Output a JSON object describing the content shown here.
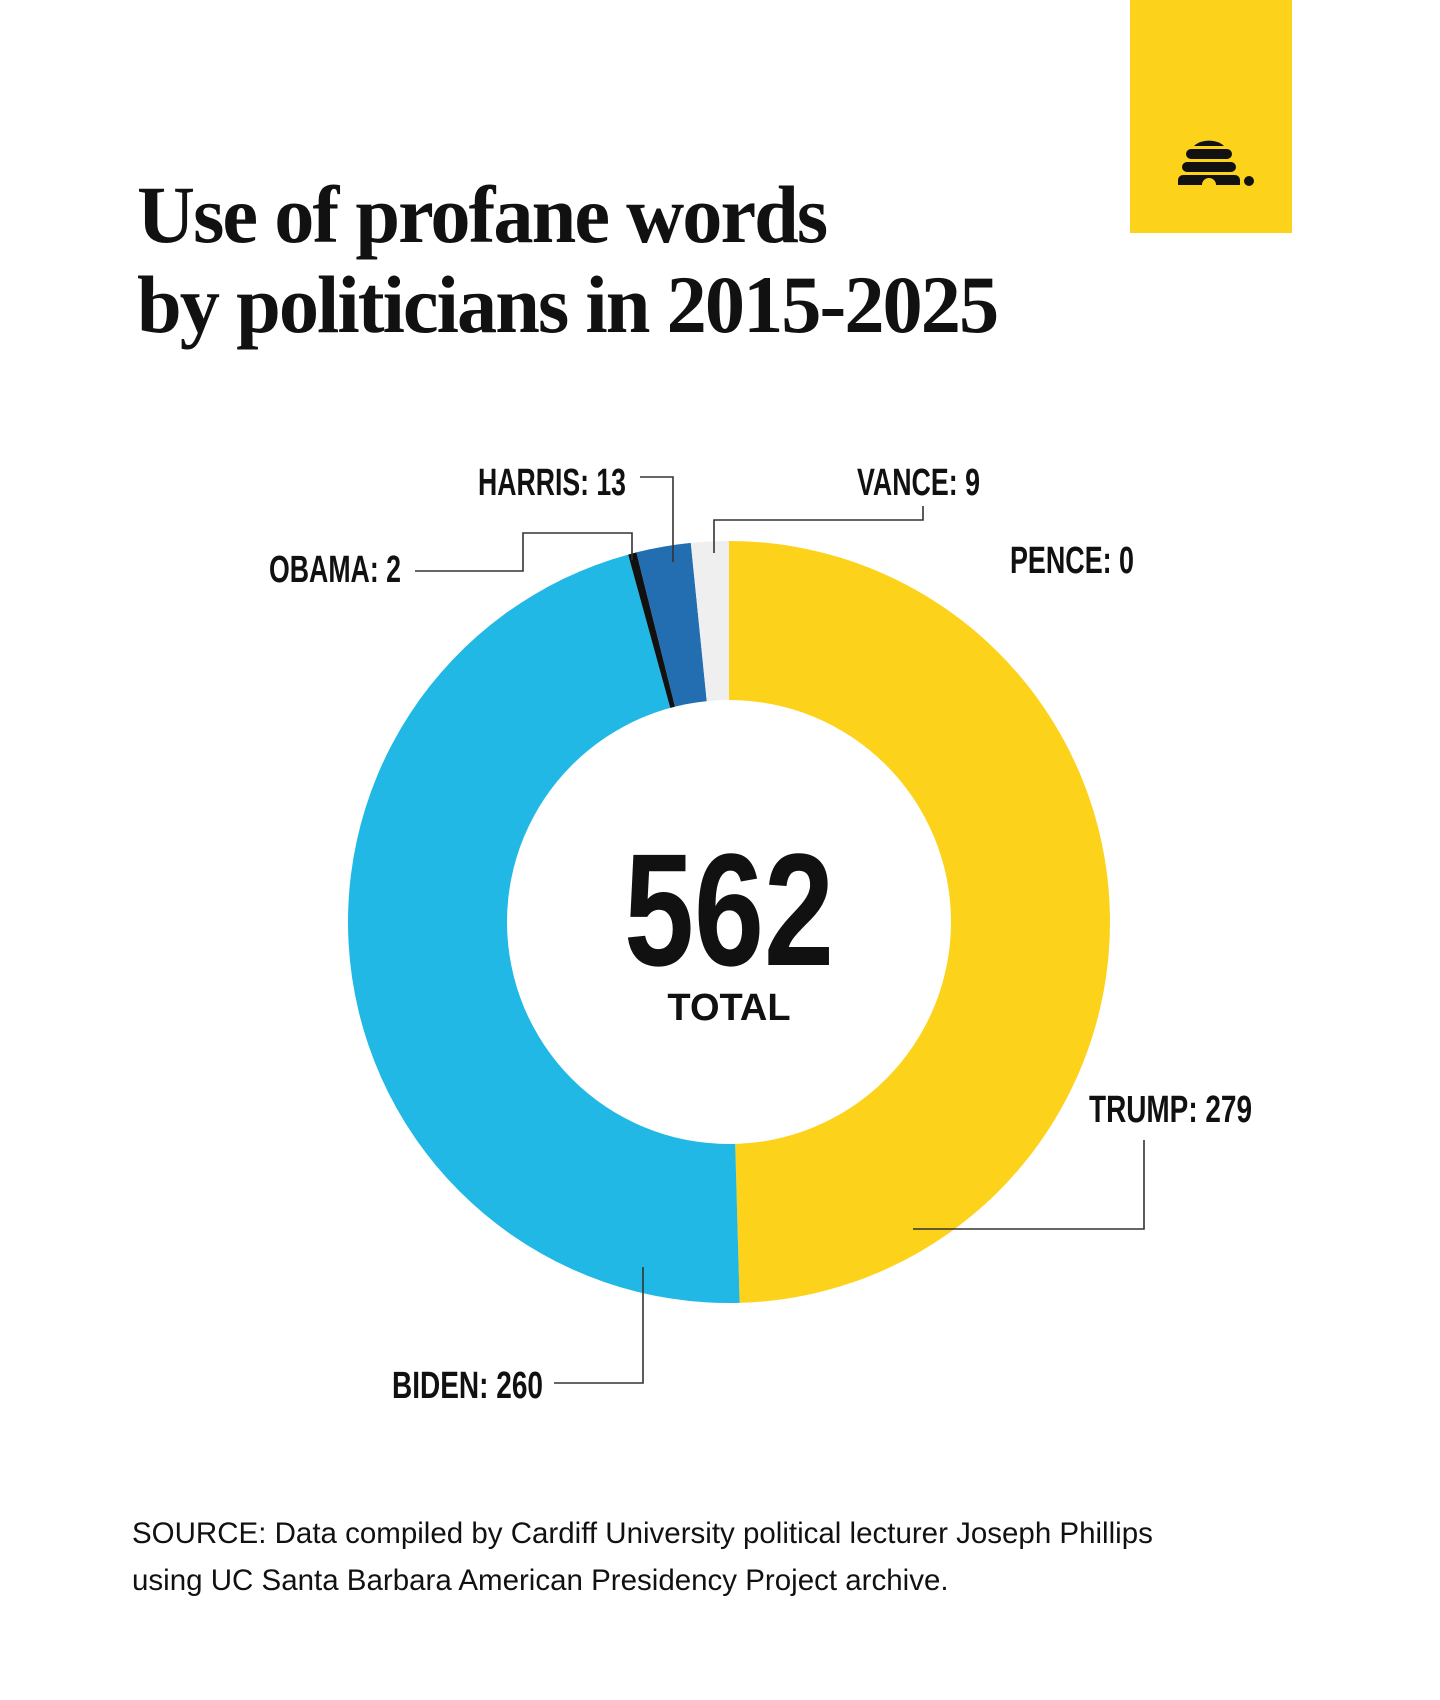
{
  "brand": {
    "logo_icon": "beehive-icon",
    "box_color": "#FDD21A"
  },
  "title": {
    "line1": "Use of profane words",
    "line2": "by politicians in 2015-2025"
  },
  "center": {
    "value": "562",
    "label": "TOTAL"
  },
  "labels": {
    "trump": "TRUMP: 279",
    "biden": "BIDEN: 260",
    "obama": "OBAMA: 2",
    "harris": "HARRIS: 13",
    "vance": "VANCE: 9",
    "pence": "PENCE: 0"
  },
  "source": {
    "line1": "SOURCE: Data compiled by Cardiff University political lecturer Joseph Phillips",
    "line2": "using UC Santa Barbara American Presidency Project archive."
  },
  "chart_data": {
    "type": "pie",
    "variant": "donut",
    "title": "Use of profane words by politicians in 2015-2025",
    "total": 562,
    "total_label": "TOTAL",
    "categories": [
      "TRUMP",
      "BIDEN",
      "OBAMA",
      "HARRIS",
      "VANCE",
      "PENCE"
    ],
    "values": [
      279,
      260,
      2,
      13,
      9,
      0
    ],
    "colors": [
      "#FDD21A",
      "#22B8E5",
      "#111111",
      "#236EB1",
      "#EFEFEF",
      "#FFFFFF"
    ],
    "start_angle_deg": 0,
    "direction": "clockwise",
    "legend": "direct labels with leader lines",
    "source": "SOURCE: Data compiled by Cardiff University political lecturer Joseph Phillips using UC Santa Barbara American Presidency Project archive."
  }
}
